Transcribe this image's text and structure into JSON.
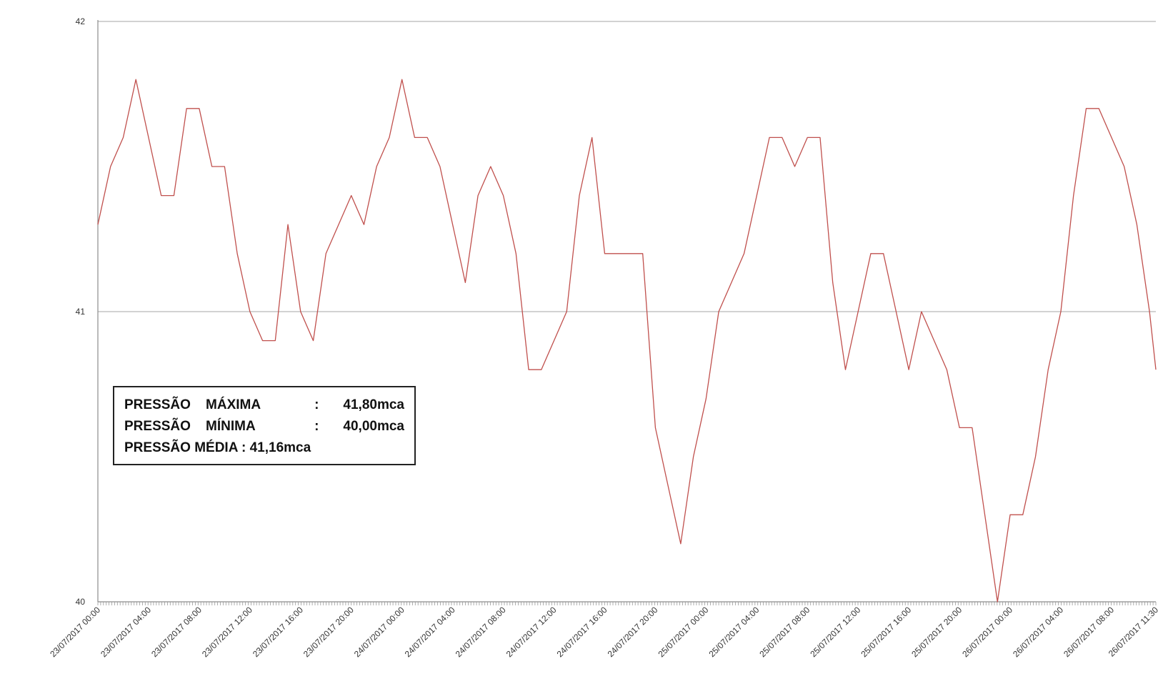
{
  "chart_data": {
    "type": "line",
    "title": "",
    "xlabel": "",
    "ylabel": "",
    "ylim": [
      40,
      42
    ],
    "y_ticks": [
      "40",
      "41",
      "42"
    ],
    "x_tick_labels": [
      "23/07/2017 00:00",
      "23/07/2017 04:00",
      "23/07/2017 08:00",
      "23/07/2017 12:00",
      "23/07/2017 16:00",
      "23/07/2017 20:00",
      "24/07/2017 00:00",
      "24/07/2017 04:00",
      "24/07/2017 08:00",
      "24/07/2017 12:00",
      "24/07/2017 16:00",
      "24/07/2017 20:00",
      "25/07/2017 00:00",
      "25/07/2017 04:00",
      "25/07/2017 08:00",
      "25/07/2017 12:00",
      "25/07/2017 16:00",
      "25/07/2017 20:00",
      "26/07/2017 00:00",
      "26/07/2017 04:00",
      "26/07/2017 08:00",
      "26/07/2017 11:30"
    ],
    "grid": "horizontal",
    "line_color": "#c0504d",
    "series": [
      {
        "x": [
          "23/07/2017 00:00",
          "23/07/2017 01:00",
          "23/07/2017 02:00",
          "23/07/2017 03:00",
          "23/07/2017 04:00",
          "23/07/2017 05:00",
          "23/07/2017 06:00",
          "23/07/2017 07:00",
          "23/07/2017 08:00",
          "23/07/2017 09:00",
          "23/07/2017 10:00",
          "23/07/2017 11:00",
          "23/07/2017 12:00",
          "23/07/2017 13:00",
          "23/07/2017 14:00",
          "23/07/2017 15:00",
          "23/07/2017 16:00",
          "23/07/2017 17:00",
          "23/07/2017 18:00",
          "23/07/2017 19:00",
          "23/07/2017 20:00",
          "23/07/2017 21:00",
          "23/07/2017 22:00",
          "23/07/2017 23:00",
          "24/07/2017 00:00",
          "24/07/2017 01:00",
          "24/07/2017 02:00",
          "24/07/2017 03:00",
          "24/07/2017 04:00",
          "24/07/2017 05:00",
          "24/07/2017 06:00",
          "24/07/2017 07:00",
          "24/07/2017 08:00",
          "24/07/2017 09:00",
          "24/07/2017 10:00",
          "24/07/2017 11:00",
          "24/07/2017 12:00",
          "24/07/2017 13:00",
          "24/07/2017 14:00",
          "24/07/2017 15:00",
          "24/07/2017 16:00",
          "24/07/2017 17:00",
          "24/07/2017 18:00",
          "24/07/2017 19:00",
          "24/07/2017 20:00",
          "24/07/2017 21:00",
          "24/07/2017 22:00",
          "24/07/2017 23:00",
          "25/07/2017 00:00",
          "25/07/2017 01:00",
          "25/07/2017 02:00",
          "25/07/2017 03:00",
          "25/07/2017 04:00",
          "25/07/2017 05:00",
          "25/07/2017 06:00",
          "25/07/2017 07:00",
          "25/07/2017 08:00",
          "25/07/2017 09:00",
          "25/07/2017 10:00",
          "25/07/2017 11:00",
          "25/07/2017 12:00",
          "25/07/2017 13:00",
          "25/07/2017 14:00",
          "25/07/2017 15:00",
          "25/07/2017 16:00",
          "25/07/2017 17:00",
          "25/07/2017 18:00",
          "25/07/2017 19:00",
          "25/07/2017 20:00",
          "25/07/2017 21:00",
          "25/07/2017 22:00",
          "25/07/2017 23:00",
          "26/07/2017 00:00",
          "26/07/2017 01:00",
          "26/07/2017 02:00",
          "26/07/2017 03:00",
          "26/07/2017 04:00",
          "26/07/2017 05:00",
          "26/07/2017 06:00",
          "26/07/2017 07:00",
          "26/07/2017 08:00",
          "26/07/2017 09:00",
          "26/07/2017 10:00",
          "26/07/2017 11:00",
          "26/07/2017 11:30"
        ],
        "y": [
          41.3,
          41.5,
          41.6,
          41.8,
          41.6,
          41.4,
          41.4,
          41.7,
          41.7,
          41.5,
          41.5,
          41.2,
          41.0,
          40.9,
          40.9,
          41.3,
          41.0,
          40.9,
          41.2,
          41.3,
          41.4,
          41.3,
          41.5,
          41.6,
          41.8,
          41.6,
          41.6,
          41.5,
          41.3,
          41.1,
          41.4,
          41.5,
          41.4,
          41.2,
          40.8,
          40.8,
          40.9,
          41.0,
          41.4,
          41.6,
          41.2,
          41.2,
          41.2,
          41.2,
          40.6,
          40.4,
          40.2,
          40.5,
          40.7,
          41.0,
          41.1,
          41.2,
          41.4,
          41.6,
          41.6,
          41.5,
          41.6,
          41.6,
          41.1,
          40.8,
          41.0,
          41.2,
          41.2,
          41.0,
          40.8,
          41.0,
          40.9,
          40.8,
          40.6,
          40.6,
          40.3,
          40.0,
          40.3,
          40.3,
          40.5,
          40.8,
          41.0,
          41.4,
          41.7,
          41.7,
          41.6,
          41.5,
          41.3,
          41.0,
          40.8
        ]
      }
    ]
  },
  "stats": {
    "max_label": "PRESSÃO    MÁXIMA",
    "max_sep": ":",
    "max_value": "41,80mca",
    "min_label": "PRESSÃO    MÍNIMA",
    "min_sep": ":",
    "min_value": "40,00mca",
    "avg_text": "PRESSÃO MÉDIA : 41,16mca"
  }
}
